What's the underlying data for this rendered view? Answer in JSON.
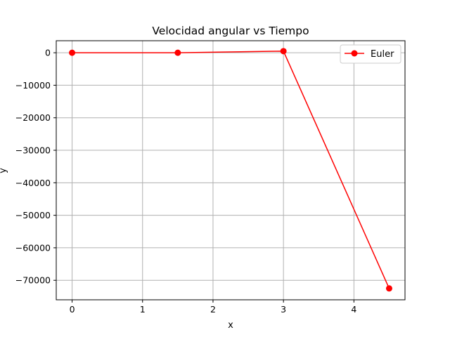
{
  "chart_data": {
    "type": "line",
    "title": "Velocidad angular vs Tiempo",
    "xlabel": "x",
    "ylabel": "y",
    "xlim": [
      -0.225,
      4.725
    ],
    "ylim": [
      -76000,
      3700
    ],
    "xticks": [
      0,
      1,
      2,
      3,
      4
    ],
    "xtick_labels": [
      "0",
      "1",
      "2",
      "3",
      "4"
    ],
    "yticks": [
      0,
      -10000,
      -20000,
      -30000,
      -40000,
      -50000,
      -60000,
      -70000
    ],
    "ytick_labels": [
      "0",
      "−10000",
      "−20000",
      "−30000",
      "−40000",
      "−50000",
      "−60000",
      "−70000"
    ],
    "grid": true,
    "legend_position": "top-right",
    "series": [
      {
        "name": "Euler",
        "color": "#ff0000",
        "marker": "circle",
        "x": [
          0,
          1.5,
          3,
          4.5
        ],
        "y": [
          0,
          0,
          500,
          -72500
        ]
      }
    ]
  }
}
